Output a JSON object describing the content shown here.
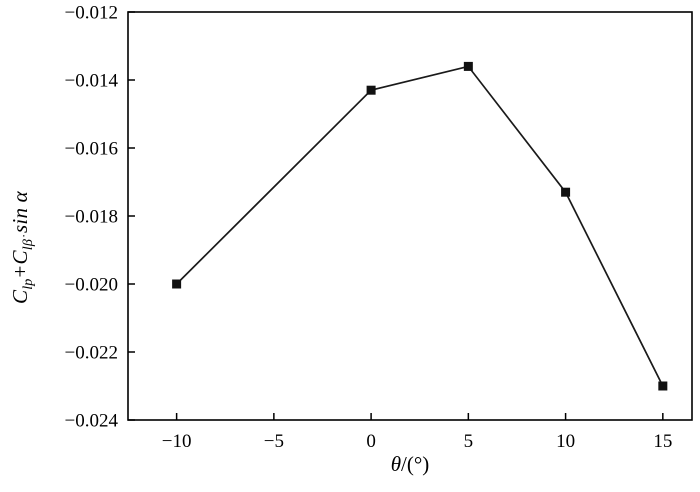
{
  "chart_data": {
    "type": "line",
    "x": [
      -10,
      0,
      5,
      10,
      15
    ],
    "y": [
      -0.02,
      -0.0143,
      -0.0136,
      -0.0173,
      -0.023
    ],
    "series": [
      {
        "name": "Clp + Clbdot sin alpha vs theta",
        "x": [
          -10,
          0,
          5,
          10,
          15
        ],
        "values": [
          -0.02,
          -0.0143,
          -0.0136,
          -0.0173,
          -0.023
        ]
      }
    ],
    "title": "",
    "xlabel": {
      "symbol": "θ",
      "rest": "/(°)"
    },
    "ylabel": {
      "term1_base": "C",
      "term1_sub": "lp",
      "operator": "+",
      "term2_base": "C",
      "term2_sub": "lβ̇",
      "suffix": "sin α"
    },
    "xlim": [
      -12.5,
      16.5
    ],
    "ylim": [
      -0.024,
      -0.012
    ],
    "xticks": [
      -10,
      -5,
      0,
      5,
      10,
      15
    ],
    "xtick_labels": [
      "−10",
      "−5",
      "0",
      "5",
      "10",
      "15"
    ],
    "yticks": [
      -0.012,
      -0.014,
      -0.016,
      -0.018,
      -0.02,
      -0.022,
      -0.024
    ],
    "ytick_labels": [
      "−0.012",
      "−0.014",
      "−0.016",
      "−0.018",
      "−0.020",
      "−0.022",
      "−0.024"
    ],
    "marker": "square",
    "marker_size": 9,
    "line_color": "#1a1a1a",
    "marker_color": "#111111",
    "frame_color": "#000000",
    "grid": false,
    "legend_position": "none"
  }
}
